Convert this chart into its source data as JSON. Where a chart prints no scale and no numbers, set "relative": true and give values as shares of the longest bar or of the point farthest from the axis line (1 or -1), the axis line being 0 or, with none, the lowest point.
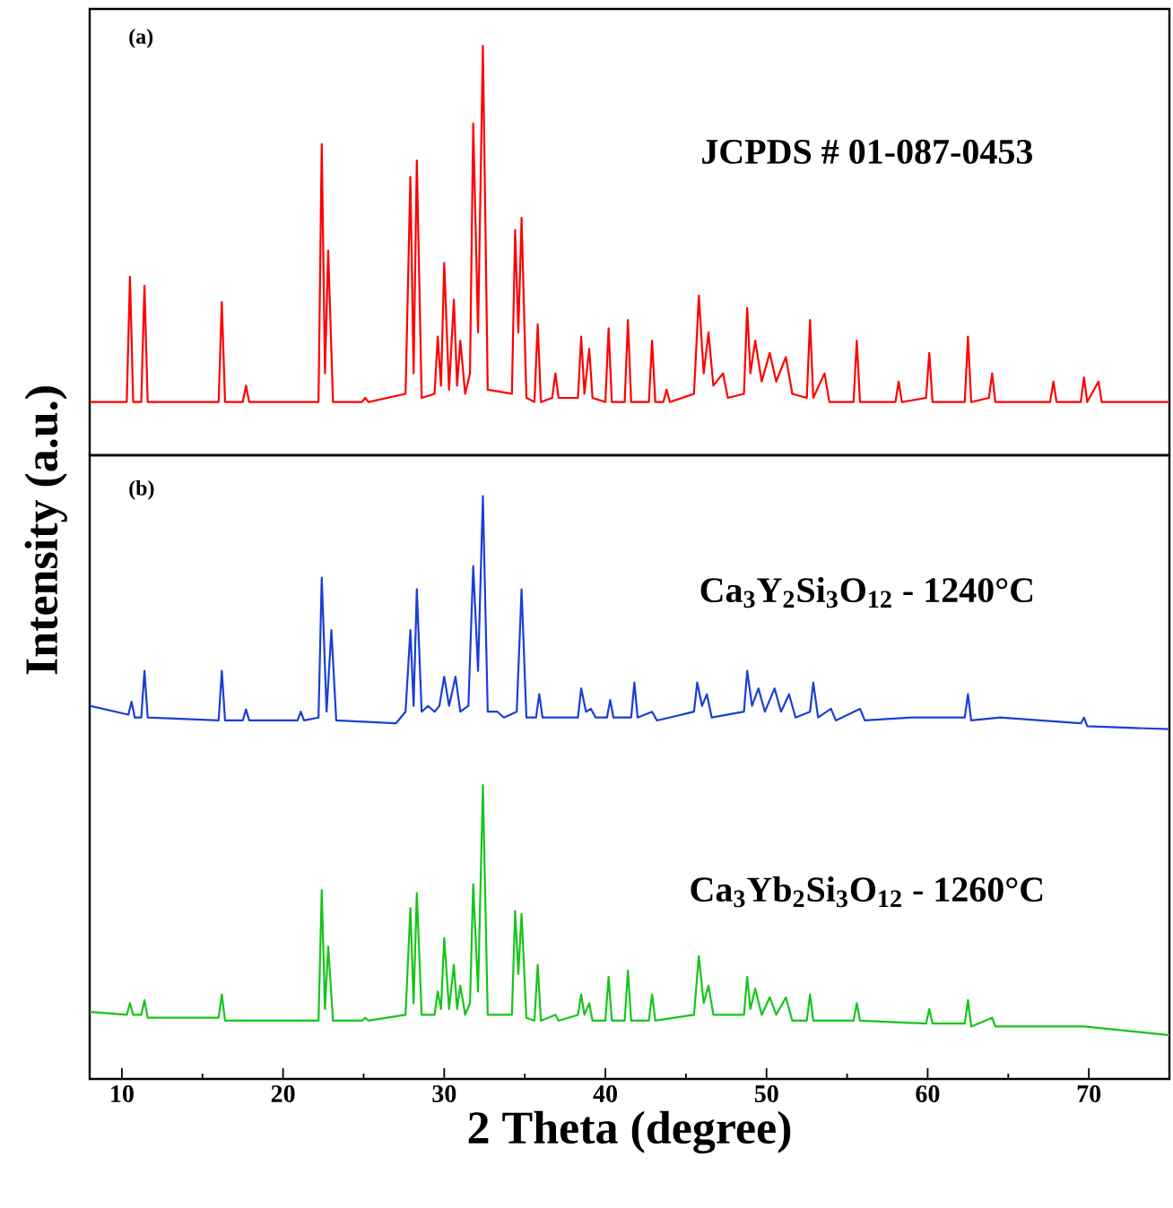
{
  "chart_data": [
    {
      "type": "line",
      "title": "(a)",
      "xlim": [
        8,
        75
      ],
      "relative": true,
      "tick_labels": false,
      "marker": "none",
      "line_style": "solid",
      "series": [
        {
          "name": "JCPDS # 01-087-0453",
          "color": "#ff0000",
          "x": [
            8,
            10.3,
            10.5,
            10.7,
            11.2,
            11.4,
            11.6,
            16.0,
            16.2,
            16.4,
            17.5,
            17.7,
            17.9,
            22.2,
            22.4,
            22.6,
            22.8,
            23.1,
            24.9,
            25.1,
            25.3,
            27.6,
            27.9,
            28.1,
            28.3,
            28.6,
            29.4,
            29.6,
            29.8,
            30.0,
            30.3,
            30.6,
            30.8,
            31.0,
            31.3,
            31.6,
            31.8,
            32.1,
            32.4,
            32.7,
            34.2,
            34.4,
            34.6,
            34.8,
            35.1,
            35.6,
            35.8,
            36.0,
            36.7,
            36.9,
            37.1,
            38.3,
            38.5,
            38.7,
            39.0,
            39.2,
            40.0,
            40.2,
            40.4,
            41.2,
            41.4,
            41.6,
            42.7,
            42.9,
            43.1,
            43.6,
            43.8,
            44.0,
            45.5,
            45.8,
            46.1,
            46.4,
            46.7,
            47.3,
            47.6,
            48.6,
            48.8,
            49.0,
            49.3,
            49.7,
            50.2,
            50.6,
            51.2,
            51.6,
            52.5,
            52.7,
            52.9,
            53.6,
            53.9,
            55.4,
            55.6,
            55.8,
            58.0,
            58.2,
            58.4,
            59.9,
            60.1,
            60.3,
            62.3,
            62.5,
            62.7,
            63.8,
            64.0,
            64.2,
            67.6,
            67.8,
            68.0,
            69.5,
            69.7,
            69.9,
            70.6,
            70.8,
            71.3,
            75
          ],
          "values": [
            0.13,
            0.13,
            0.436,
            0.13,
            0.13,
            0.414,
            0.13,
            0.13,
            0.374,
            0.13,
            0.13,
            0.17,
            0.13,
            0.13,
            0.76,
            0.2,
            0.5,
            0.13,
            0.13,
            0.14,
            0.13,
            0.15,
            0.68,
            0.2,
            0.72,
            0.14,
            0.15,
            0.29,
            0.17,
            0.47,
            0.16,
            0.38,
            0.17,
            0.28,
            0.15,
            0.2,
            0.81,
            0.3,
            1.0,
            0.16,
            0.15,
            0.55,
            0.3,
            0.58,
            0.14,
            0.13,
            0.32,
            0.13,
            0.14,
            0.2,
            0.14,
            0.14,
            0.29,
            0.15,
            0.26,
            0.14,
            0.13,
            0.31,
            0.13,
            0.13,
            0.33,
            0.13,
            0.13,
            0.28,
            0.13,
            0.13,
            0.16,
            0.13,
            0.15,
            0.39,
            0.2,
            0.3,
            0.17,
            0.2,
            0.14,
            0.15,
            0.36,
            0.2,
            0.28,
            0.18,
            0.25,
            0.18,
            0.24,
            0.15,
            0.14,
            0.33,
            0.14,
            0.2,
            0.13,
            0.13,
            0.28,
            0.13,
            0.13,
            0.18,
            0.13,
            0.14,
            0.25,
            0.13,
            0.13,
            0.29,
            0.13,
            0.14,
            0.2,
            0.13,
            0.13,
            0.18,
            0.13,
            0.13,
            0.19,
            0.13,
            0.18,
            0.13,
            0.13,
            0.13
          ]
        }
      ]
    },
    {
      "type": "line",
      "title": "(b)",
      "xlabel": "2 Theta (degree)",
      "ylabel": "Intensity (a.u.)",
      "xlim": [
        8,
        75
      ],
      "xticks": [
        10,
        {
          "value": 15,
          "label": null
        },
        20,
        {
          "value": 25,
          "label": null
        },
        30,
        {
          "value": 35,
          "label": null
        },
        40,
        {
          "value": 45,
          "label": null
        },
        50,
        {
          "value": 55,
          "label": null
        },
        60,
        {
          "value": 65,
          "label": null
        },
        70
      ],
      "relative": true,
      "tick_labels": "x",
      "marker": "none",
      "line_style": "solid",
      "series": [
        {
          "name": "Ca$_{3}$Y$_{2}$Si$_{3}$O$_{12}$  - 1240°C",
          "color": "#1a3fd6",
          "x": [
            8,
            10.4,
            10.6,
            10.8,
            11.2,
            11.4,
            11.6,
            16.0,
            16.2,
            16.4,
            17.5,
            17.7,
            17.9,
            20.9,
            21.1,
            21.3,
            22.2,
            22.4,
            22.7,
            23.0,
            23.3,
            27.0,
            27.6,
            27.9,
            28.1,
            28.3,
            28.6,
            29.0,
            29.4,
            29.7,
            30.0,
            30.3,
            30.7,
            31.0,
            31.5,
            31.8,
            32.1,
            32.4,
            32.7,
            33.3,
            33.7,
            34.5,
            34.8,
            35.1,
            35.7,
            35.9,
            36.1,
            38.3,
            38.5,
            38.8,
            39.1,
            39.4,
            40.1,
            40.3,
            40.5,
            41.6,
            41.8,
            42.0,
            42.9,
            43.2,
            45.5,
            45.7,
            46.0,
            46.3,
            46.6,
            48.6,
            48.8,
            49.1,
            49.5,
            49.9,
            50.5,
            50.9,
            51.4,
            51.8,
            52.7,
            52.9,
            53.2,
            54.0,
            54.3,
            55.8,
            56.1,
            59.0,
            62.3,
            62.5,
            62.7,
            64.5,
            69.5,
            69.7,
            69.9,
            75
          ],
          "values": [
            0.64,
            0.625,
            0.647,
            0.62,
            0.62,
            0.7,
            0.62,
            0.615,
            0.7,
            0.615,
            0.615,
            0.634,
            0.615,
            0.615,
            0.63,
            0.615,
            0.62,
            0.86,
            0.63,
            0.77,
            0.615,
            0.61,
            0.63,
            0.77,
            0.64,
            0.84,
            0.63,
            0.64,
            0.63,
            0.64,
            0.69,
            0.64,
            0.69,
            0.63,
            0.64,
            0.88,
            0.7,
            1.0,
            0.63,
            0.63,
            0.62,
            0.63,
            0.84,
            0.62,
            0.62,
            0.66,
            0.62,
            0.62,
            0.67,
            0.63,
            0.635,
            0.62,
            0.62,
            0.65,
            0.62,
            0.62,
            0.68,
            0.62,
            0.63,
            0.615,
            0.63,
            0.68,
            0.64,
            0.66,
            0.62,
            0.63,
            0.7,
            0.64,
            0.67,
            0.63,
            0.67,
            0.63,
            0.66,
            0.62,
            0.63,
            0.68,
            0.62,
            0.635,
            0.615,
            0.635,
            0.615,
            0.62,
            0.62,
            0.66,
            0.615,
            0.62,
            0.61,
            0.62,
            0.605,
            0.6
          ]
        },
        {
          "name": "Ca$_{3}$Yb$_{2}$Si$_{3}$O$_{12}$ - 1260°C",
          "color": "#16c51a",
          "x": [
            8,
            10.3,
            10.5,
            10.7,
            11.2,
            11.4,
            11.6,
            16.0,
            16.2,
            16.4,
            22.2,
            22.4,
            22.6,
            22.8,
            23.1,
            24.9,
            25.1,
            25.3,
            27.6,
            27.9,
            28.1,
            28.3,
            28.6,
            29.4,
            29.6,
            29.8,
            30.0,
            30.3,
            30.6,
            30.8,
            31.0,
            31.3,
            31.6,
            31.8,
            32.1,
            32.4,
            32.7,
            34.2,
            34.4,
            34.6,
            34.8,
            35.1,
            35.6,
            35.8,
            36.0,
            36.9,
            37.1,
            38.3,
            38.5,
            38.7,
            39.0,
            39.2,
            40.0,
            40.2,
            40.4,
            41.2,
            41.4,
            41.6,
            42.7,
            42.9,
            43.1,
            45.5,
            45.8,
            46.1,
            46.4,
            46.7,
            48.6,
            48.8,
            49.0,
            49.3,
            49.7,
            50.2,
            50.6,
            51.2,
            51.6,
            52.5,
            52.7,
            52.9,
            55.4,
            55.6,
            55.8,
            59.9,
            60.1,
            60.3,
            62.3,
            62.5,
            62.7,
            64.0,
            64.2,
            69.7,
            75
          ],
          "values": [
            0.115,
            0.11,
            0.13,
            0.11,
            0.11,
            0.135,
            0.105,
            0.105,
            0.145,
            0.1,
            0.1,
            0.324,
            0.12,
            0.227,
            0.1,
            0.1,
            0.105,
            0.1,
            0.11,
            0.293,
            0.13,
            0.319,
            0.11,
            0.11,
            0.15,
            0.12,
            0.242,
            0.12,
            0.196,
            0.12,
            0.16,
            0.11,
            0.13,
            0.334,
            0.15,
            0.504,
            0.11,
            0.11,
            0.288,
            0.18,
            0.283,
            0.105,
            0.1,
            0.196,
            0.1,
            0.11,
            0.1,
            0.11,
            0.145,
            0.11,
            0.13,
            0.1,
            0.1,
            0.175,
            0.1,
            0.1,
            0.186,
            0.1,
            0.1,
            0.145,
            0.1,
            0.11,
            0.211,
            0.13,
            0.16,
            0.11,
            0.11,
            0.175,
            0.12,
            0.155,
            0.11,
            0.14,
            0.11,
            0.14,
            0.1,
            0.1,
            0.145,
            0.1,
            0.1,
            0.13,
            0.1,
            0.095,
            0.12,
            0.095,
            0.095,
            0.135,
            0.09,
            0.105,
            0.09,
            0.09,
            0.075
          ]
        }
      ]
    }
  ]
}
